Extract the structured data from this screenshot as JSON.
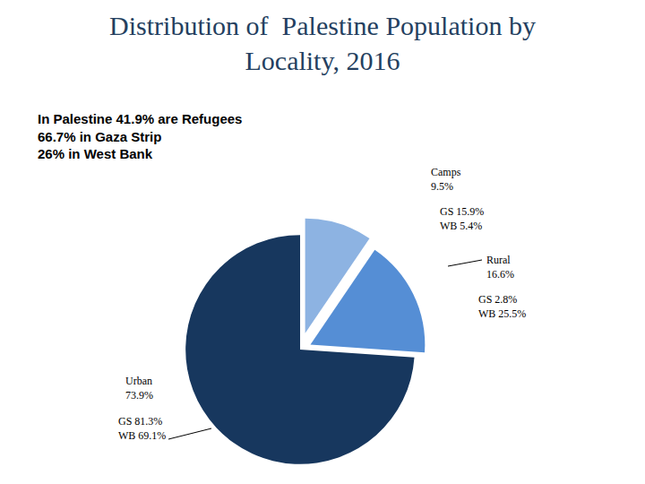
{
  "chart_data": {
    "type": "pie",
    "title": "Distribution of  Palestine Population by\nLocality, 2016",
    "annotations": [
      "In Palestine 41.9% are Refugees",
      "66.7% in Gaza Strip",
      "26% in West Bank"
    ],
    "categories": [
      "Camps",
      "Rural",
      "Urban"
    ],
    "values": [
      9.5,
      16.6,
      73.9
    ],
    "value_labels": [
      "9.5%",
      "16.6%",
      "73.9%"
    ],
    "colors": [
      "#8db3e2",
      "#558ed5",
      "#17375e"
    ],
    "data_labels": true,
    "breakdown": [
      {
        "name": "GS",
        "values": [
          15.9,
          2.8,
          81.3
        ],
        "value_labels": [
          "GS 15.9%",
          "GS 2.8%",
          "GS 81.3%"
        ]
      },
      {
        "name": "WB",
        "values": [
          5.4,
          25.5,
          69.1
        ],
        "value_labels": [
          "WB 5.4%",
          "WB 25.5%",
          "WB 69.1%"
        ]
      }
    ]
  }
}
